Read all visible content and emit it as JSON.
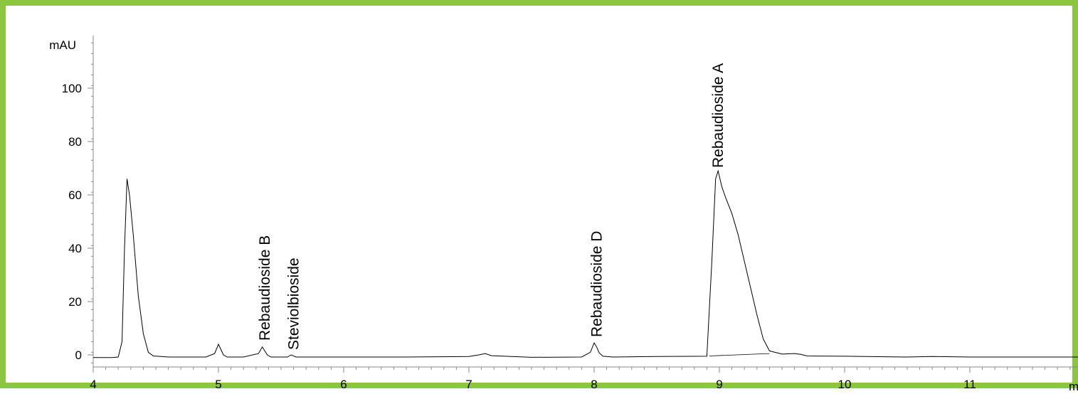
{
  "colors": {
    "border": "#8cc63f",
    "trace": "#000000",
    "background": "#ffffff"
  },
  "chart_data": {
    "type": "line",
    "title": "",
    "xlabel": "mi",
    "ylabel": "mAU",
    "xlim": [
      4,
      12
    ],
    "ylim": [
      -3.5,
      120
    ],
    "x_ticks": [
      4,
      5,
      6,
      7,
      8,
      9,
      10,
      11
    ],
    "y_ticks": [
      0,
      20,
      40,
      60,
      80,
      100
    ],
    "grid": false,
    "series": [
      {
        "values_description": "",
        "x": [
          4.0,
          4.15,
          4.2,
          4.23,
          4.25,
          4.27,
          4.29,
          4.32,
          4.36,
          4.4,
          4.44,
          4.48,
          4.6,
          4.9,
          4.97,
          5.0,
          5.02,
          5.04,
          5.07,
          5.2,
          5.32,
          5.35,
          5.37,
          5.39,
          5.42,
          5.55,
          5.58,
          5.62,
          6.0,
          6.5,
          7.0,
          7.08,
          7.13,
          7.18,
          7.5,
          7.9,
          7.97,
          8.0,
          8.02,
          8.04,
          8.07,
          8.15,
          8.5,
          8.9,
          8.94,
          8.97,
          8.99,
          9.02,
          9.05,
          9.1,
          9.15,
          9.2,
          9.25,
          9.3,
          9.35,
          9.4,
          9.5,
          9.6,
          9.65,
          9.7,
          10.0,
          10.5,
          10.7,
          11.0,
          11.5,
          12.0
        ],
        "y": [
          -1,
          -1,
          -0.8,
          5,
          40,
          66,
          60,
          45,
          22,
          8,
          1,
          -0.4,
          -0.8,
          -0.8,
          0.5,
          4,
          2,
          0,
          -0.8,
          -0.8,
          0.5,
          3,
          1.5,
          0,
          -0.8,
          -0.8,
          0,
          -0.8,
          -0.8,
          -0.8,
          -0.6,
          0,
          0.5,
          -0.3,
          -0.9,
          -0.8,
          1,
          4.5,
          3,
          0.8,
          -0.5,
          -0.8,
          -0.6,
          -0.5,
          35,
          66,
          69,
          63,
          59,
          53,
          45,
          35,
          25,
          15,
          6,
          1.5,
          0.3,
          0.5,
          0.2,
          -0.4,
          -0.5,
          -0.8,
          -0.6,
          -0.8,
          -0.8,
          -0.8
        ]
      }
    ],
    "annotations": [
      {
        "text": "Rebaudioside B",
        "x": 5.37
      },
      {
        "text": "Steviolbioside",
        "x": 5.6
      },
      {
        "text": "Rebaudioside D",
        "x": 8.02
      },
      {
        "text": "Rebaudioside A",
        "x": 8.99
      }
    ]
  }
}
